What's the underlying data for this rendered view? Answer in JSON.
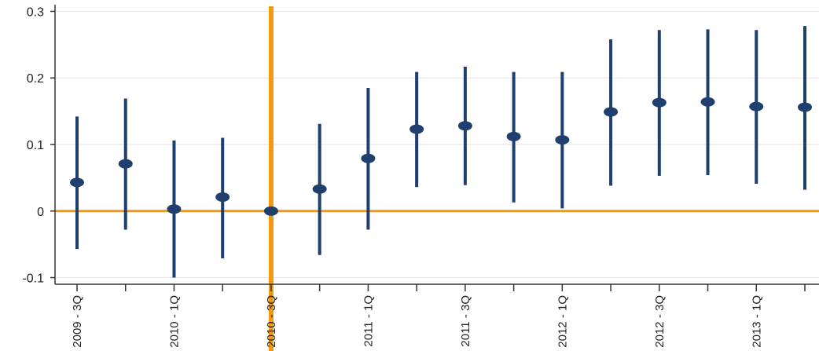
{
  "chart_data": {
    "type": "scatter",
    "title": "",
    "xlabel": "",
    "ylabel": "",
    "x": [
      "2009 - 3Q",
      "2009 - 4Q",
      "2010 - 1Q",
      "2010 - 2Q",
      "2010 - 3Q",
      "2010 - 4Q",
      "2011 - 1Q",
      "2011 - 2Q",
      "2011 - 3Q",
      "2011 - 4Q",
      "2012 - 1Q",
      "2012 - 2Q",
      "2012 - 3Q",
      "2012 - 4Q",
      "2013 - 1Q",
      "2013 - 2Q"
    ],
    "tick_labels": [
      "2009 - 3Q",
      "2010 - 1Q",
      "2010 - 3Q",
      "2011 - 1Q",
      "2011 - 3Q",
      "2012 - 1Q",
      "2012 - 3Q",
      "2013 - 1Q"
    ],
    "series": [
      {
        "estimate": [
          0.043,
          0.071,
          0.003,
          0.021,
          0.0,
          0.033,
          0.079,
          0.123,
          0.128,
          0.112,
          0.107,
          0.149,
          0.163,
          0.164,
          0.157,
          0.156
        ],
        "ci_low": [
          -0.057,
          -0.028,
          -0.1,
          -0.071,
          null,
          -0.066,
          -0.028,
          0.036,
          0.039,
          0.013,
          0.004,
          0.038,
          0.053,
          0.054,
          0.041,
          0.032
        ],
        "ci_high": [
          0.142,
          0.169,
          0.106,
          0.11,
          null,
          0.131,
          0.185,
          0.209,
          0.217,
          0.209,
          0.209,
          0.258,
          0.272,
          0.273,
          0.272,
          0.278
        ]
      }
    ],
    "ylim": [
      -0.11,
      0.31
    ],
    "yticks": [
      -0.1,
      0,
      0.1,
      0.2,
      0.3
    ],
    "ytick_labels": [
      "-0.1",
      "0",
      "0.1",
      "0.2",
      "0.3"
    ],
    "reference_lines": {
      "horizontal_y": 0,
      "vertical_x": "2010 - 3Q"
    },
    "colors": {
      "series": "#1f3f6e",
      "reference": "#f29a0e",
      "axis": "#333333",
      "grid": "#e6e6e6"
    },
    "grid": true,
    "legend": "none"
  }
}
